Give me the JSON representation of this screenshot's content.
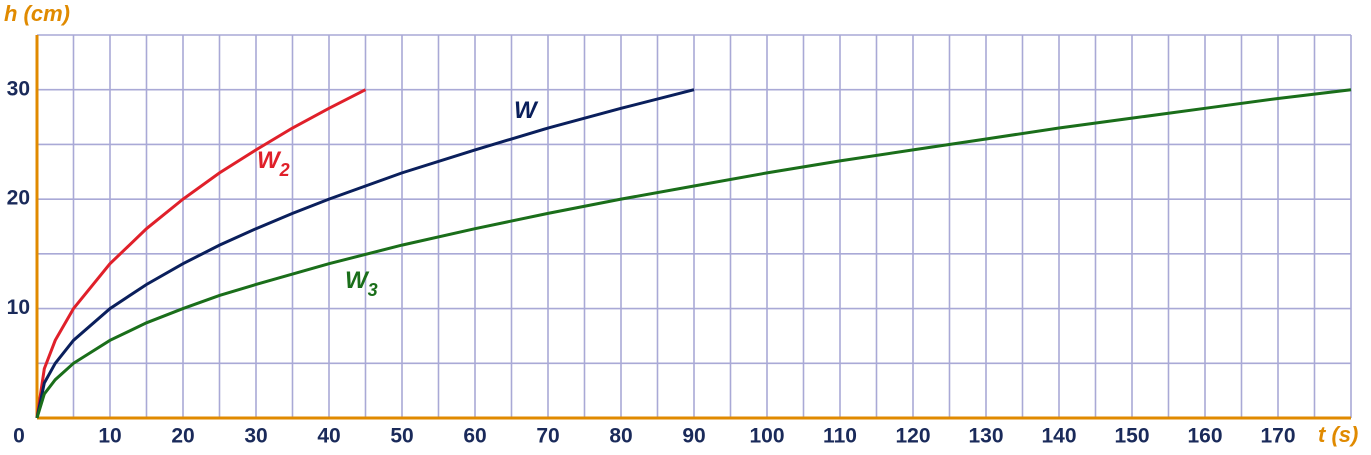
{
  "chart_data": {
    "type": "line",
    "y_label": "h (cm)",
    "x_label": "t (s)",
    "xlim": [
      0,
      180
    ],
    "ylim": [
      0,
      35
    ],
    "xticks": [
      0,
      10,
      20,
      30,
      40,
      50,
      60,
      70,
      80,
      90,
      100,
      110,
      120,
      130,
      140,
      150,
      160,
      170
    ],
    "yticks": [
      10,
      20,
      30
    ],
    "grid": true,
    "grid_x": [
      5,
      10,
      15,
      20,
      25,
      30,
      35,
      40,
      45,
      50,
      55,
      60,
      65,
      70,
      75,
      80,
      85,
      90,
      95,
      100,
      105,
      110,
      115,
      120,
      125,
      130,
      135,
      140,
      145,
      150,
      155,
      160,
      165,
      170,
      175,
      180
    ],
    "grid_y": [
      5,
      10,
      15,
      20,
      25,
      30,
      35
    ],
    "axis_color": "#e08a00",
    "series": [
      {
        "name": "W",
        "subscript": "2",
        "color": "#e0202a",
        "x": [
          0,
          1,
          2.5,
          5,
          10,
          15,
          20,
          25,
          30,
          35,
          40,
          45
        ],
        "values": [
          0,
          4.5,
          7.1,
          10,
          14.1,
          17.3,
          20,
          22.4,
          24.5,
          26.5,
          28.3,
          30
        ]
      },
      {
        "name": "W",
        "color": "#0a1f5c",
        "x": [
          0,
          1,
          2.5,
          5,
          10,
          15,
          20,
          25,
          30,
          35,
          40,
          45,
          50,
          60,
          70,
          80,
          90
        ],
        "values": [
          0,
          3.2,
          5,
          7.1,
          10,
          12.2,
          14.1,
          15.8,
          17.3,
          18.7,
          20,
          21.2,
          22.4,
          24.5,
          26.5,
          28.3,
          30
        ]
      },
      {
        "name": "W",
        "subscript": "3",
        "color": "#1a6e1a",
        "x": [
          0,
          1,
          2.5,
          5,
          10,
          15,
          20,
          25,
          30,
          40,
          50,
          60,
          70,
          80,
          90,
          100,
          110,
          120,
          130,
          140,
          150,
          160,
          170,
          180
        ],
        "values": [
          0,
          2.2,
          3.5,
          5,
          7.1,
          8.7,
          10,
          11.2,
          12.2,
          14.1,
          15.8,
          17.3,
          18.7,
          20,
          21.2,
          22.4,
          23.5,
          24.5,
          25.5,
          26.5,
          27.4,
          28.3,
          29.2,
          30
        ]
      }
    ]
  }
}
